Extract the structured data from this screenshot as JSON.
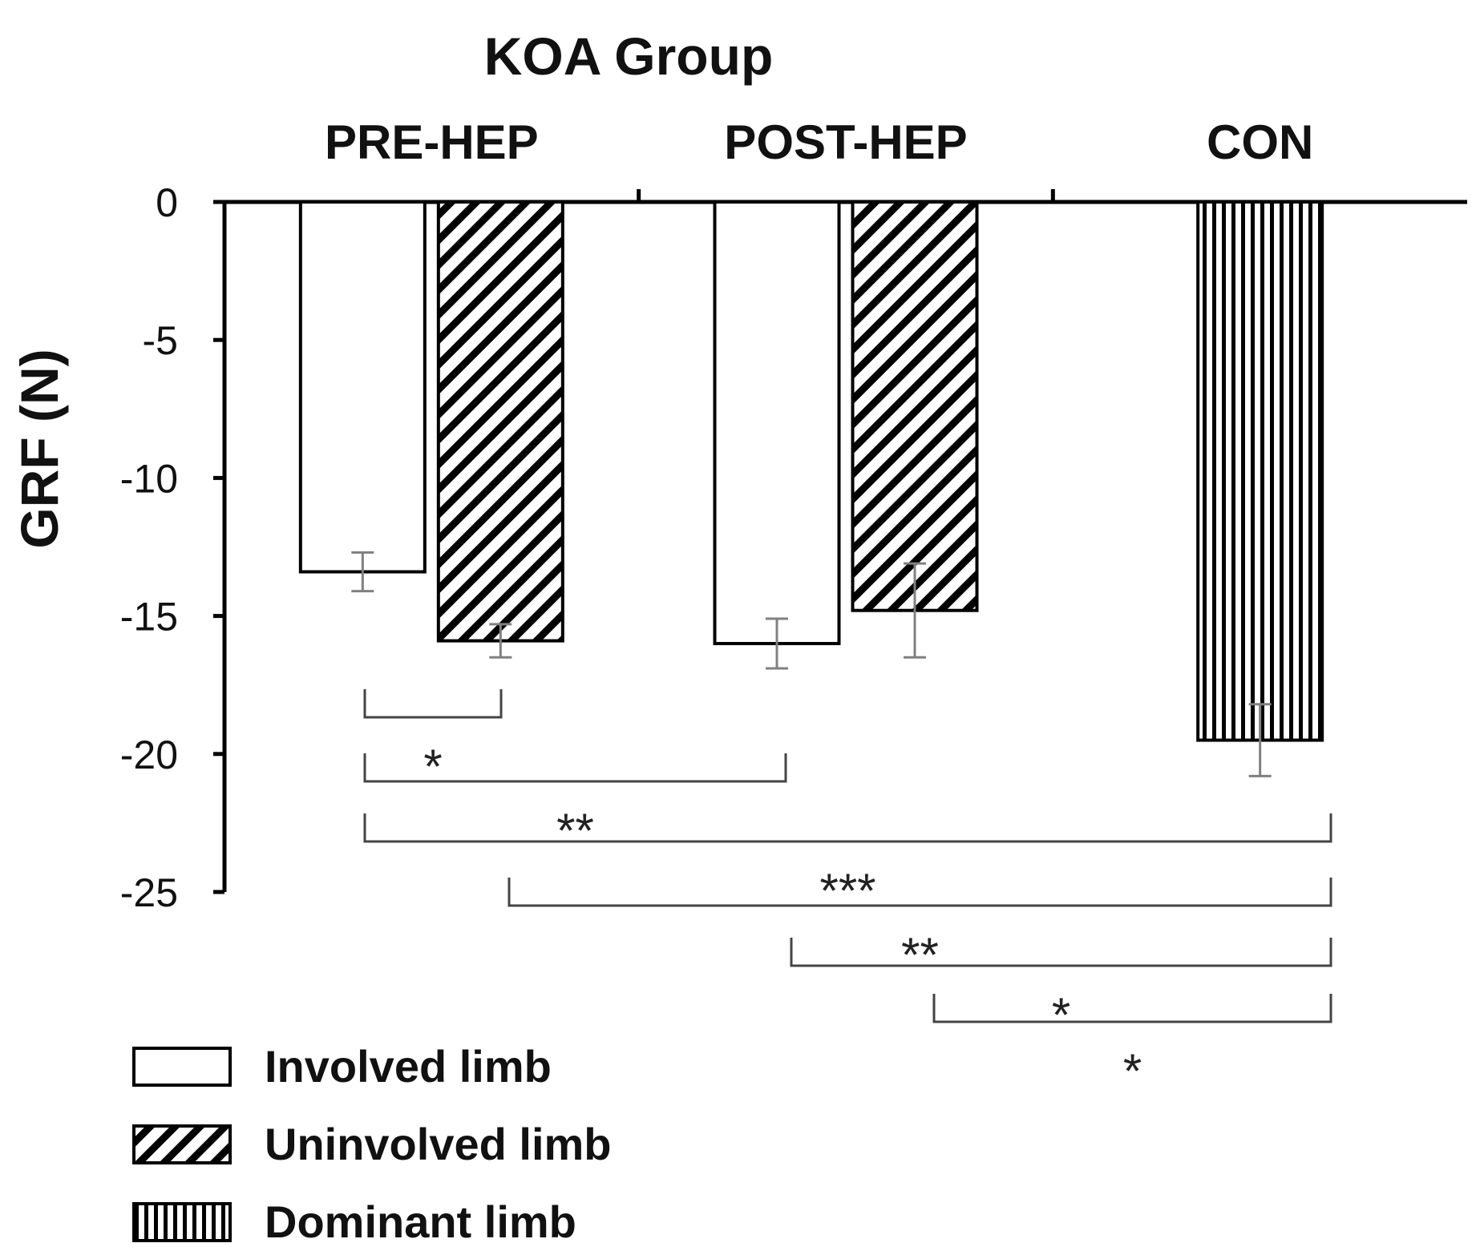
{
  "chart_data": {
    "type": "bar",
    "title": "KOA Group",
    "ylabel": "GRF (N)",
    "xlabel": "",
    "ylim": [
      -25,
      0
    ],
    "yticks": [
      0,
      -5,
      -10,
      -15,
      -20,
      -25
    ],
    "groups": [
      "PRE-HEP",
      "POST-HEP",
      "CON"
    ],
    "bars": [
      {
        "group": "PRE-HEP",
        "series": "Involved limb",
        "value": -13.4,
        "error": 0.7
      },
      {
        "group": "PRE-HEP",
        "series": "Uninvolved limb",
        "value": -15.9,
        "error": 0.6
      },
      {
        "group": "POST-HEP",
        "series": "Involved limb",
        "value": -16.0,
        "error": 0.9
      },
      {
        "group": "POST-HEP",
        "series": "Uninvolved limb",
        "value": -14.8,
        "error": 1.7
      },
      {
        "group": "CON",
        "series": "Dominant limb",
        "value": -19.5,
        "error": 1.3
      }
    ],
    "legend": [
      {
        "label": "Involved limb",
        "pattern": "none"
      },
      {
        "label": "Uninvolved limb",
        "pattern": "diagonal"
      },
      {
        "label": "Dominant limb",
        "pattern": "vertical"
      }
    ],
    "significance": [
      {
        "from": 0,
        "to": 1,
        "label": "*"
      },
      {
        "from": 0,
        "to": 2,
        "label": "**"
      },
      {
        "from": 0,
        "to": 4,
        "label": "***"
      },
      {
        "from": 1,
        "to": 4,
        "label": "**"
      },
      {
        "from": 2,
        "to": 4,
        "label": "*"
      },
      {
        "from": 3,
        "to": 4,
        "label": "*"
      }
    ]
  }
}
